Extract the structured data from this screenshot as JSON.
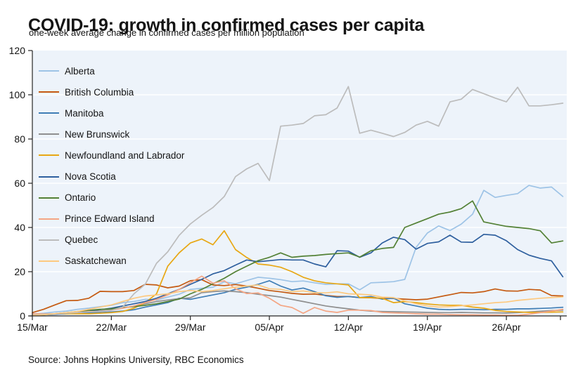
{
  "header": {
    "title": "COVID-19: growth in confirmed cases per capita",
    "subtitle": "one-week average change in confirmed cases per million population"
  },
  "source_note": "Source: Johns Hopkins University, RBC Economics",
  "chart_data": {
    "type": "line",
    "title": "COVID-19: growth in confirmed cases per capita",
    "subtitle": "one-week average change in confirmed cases per million population",
    "xlabel": "",
    "ylabel": "",
    "ylim": [
      0,
      120
    ],
    "y_ticks": [
      0,
      20,
      40,
      60,
      80,
      100,
      120
    ],
    "x_ticklabels": [
      "15/Mar",
      "22/Mar",
      "29/Mar",
      "05/Apr",
      "12/Apr",
      "19/Apr",
      "26/Apr"
    ],
    "x_tick_interval_days": 7,
    "grid": true,
    "legend_position": "top-left",
    "plot_background": "#edf3fa",
    "gridline_color": "#ffffff",
    "axis_color": "#262626",
    "text_color": "#141414",
    "dates": [
      "15/Mar",
      "16/Mar",
      "17/Mar",
      "18/Mar",
      "19/Mar",
      "20/Mar",
      "21/Mar",
      "22/Mar",
      "23/Mar",
      "24/Mar",
      "25/Mar",
      "26/Mar",
      "27/Mar",
      "28/Mar",
      "29/Mar",
      "30/Mar",
      "31/Mar",
      "01/Apr",
      "02/Apr",
      "03/Apr",
      "04/Apr",
      "05/Apr",
      "06/Apr",
      "07/Apr",
      "08/Apr",
      "09/Apr",
      "10/Apr",
      "11/Apr",
      "12/Apr",
      "13/Apr",
      "14/Apr",
      "15/Apr",
      "16/Apr",
      "17/Apr",
      "18/Apr",
      "19/Apr",
      "20/Apr",
      "21/Apr",
      "22/Apr",
      "23/Apr",
      "24/Apr",
      "25/Apr",
      "26/Apr",
      "27/Apr",
      "28/Apr",
      "29/Apr",
      "30/Apr",
      "01/May"
    ],
    "series": [
      {
        "name": "Alberta",
        "color": "#9dc3e6",
        "values": [
          0.8,
          1.2,
          1.8,
          2.2,
          3,
          3.5,
          4.2,
          4.8,
          6,
          6.5,
          7.5,
          7.2,
          8.5,
          9.8,
          12,
          12.5,
          13,
          15.4,
          14.5,
          16,
          17.5,
          17,
          16.4,
          15.5,
          15.8,
          15,
          14.3,
          14.5,
          14.5,
          11.8,
          15,
          15.2,
          15.5,
          16.5,
          31,
          37.5,
          40.7,
          38.6,
          41.5,
          46,
          56.8,
          53.6,
          54.5,
          55.3,
          59,
          57.8,
          58.3,
          54
        ]
      },
      {
        "name": "British Columbia",
        "color": "#c55a11",
        "values": [
          1.5,
          3,
          5,
          6.9,
          7,
          8,
          11.1,
          11,
          11,
          11.5,
          14.3,
          14,
          12.7,
          13.5,
          15.9,
          16.4,
          14,
          13.7,
          14.2,
          13.5,
          12.5,
          11.5,
          10.9,
          10.2,
          9.8,
          9.9,
          9.3,
          8.8,
          8.8,
          8.3,
          8.2,
          7.9,
          7.9,
          7.6,
          7.3,
          7.6,
          8.6,
          9.6,
          10.6,
          10.4,
          11,
          12.2,
          11.3,
          11.2,
          12,
          11.7,
          9.2,
          9
        ]
      },
      {
        "name": "Manitoba",
        "color": "#3f7db5",
        "values": [
          0.3,
          0.5,
          0.8,
          1,
          1.2,
          1.5,
          1.5,
          1.8,
          2.2,
          2.8,
          4,
          5,
          6,
          8,
          7.5,
          8.5,
          9.5,
          10.5,
          12,
          13,
          14.3,
          15.9,
          13.5,
          11.7,
          12.6,
          11,
          9.1,
          8.4,
          8.8,
          8.3,
          8.8,
          7.6,
          8,
          5.5,
          4.5,
          3.5,
          3,
          2.8,
          3,
          3,
          2.8,
          3,
          3,
          3.2,
          3.2,
          3.4,
          3.6,
          3.9
        ]
      },
      {
        "name": "New Brunswick",
        "color": "#8f8f8f",
        "values": [
          0.5,
          0.8,
          1,
          1.2,
          1.5,
          1.8,
          2.2,
          2.8,
          3.5,
          4.5,
          5.5,
          6.5,
          7.2,
          7.8,
          8.2,
          10.5,
          11,
          11.3,
          11,
          10.5,
          9.8,
          9.2,
          8.5,
          7.5,
          6.5,
          5.5,
          4.5,
          3.8,
          3.2,
          2.6,
          2.2,
          2,
          1.9,
          1.8,
          1.7,
          1.6,
          1.5,
          1.5,
          1.6,
          1.5,
          1.4,
          1.4,
          1.3,
          1.5,
          1.8,
          2.1,
          2.4,
          2.6
        ]
      },
      {
        "name": "Newfoundland and Labrador",
        "color": "#e8a713",
        "values": [
          1,
          1,
          1,
          1,
          1,
          1,
          1.2,
          1.5,
          2,
          3.5,
          6,
          10,
          22.5,
          28.5,
          33,
          34.8,
          32.2,
          38.5,
          30,
          26.4,
          23.5,
          23,
          22,
          20,
          17.5,
          15.9,
          15,
          14.5,
          14,
          8.3,
          8.3,
          8,
          6,
          6.5,
          6,
          5.4,
          5,
          4.8,
          4.8,
          4,
          3.5,
          2.5,
          2,
          1.8,
          1.6,
          1.6,
          1.7,
          1.8
        ]
      },
      {
        "name": "Nova Scotia",
        "color": "#2e5f9e",
        "values": [
          0.3,
          0.5,
          0.8,
          1.2,
          1.8,
          2.2,
          2.8,
          3.5,
          4.5,
          5.5,
          6.5,
          8,
          10,
          12,
          14.3,
          16.5,
          19,
          20.5,
          23,
          25.3,
          24.5,
          25,
          25.5,
          25.3,
          25.3,
          23.5,
          22.2,
          29.5,
          29.3,
          26.5,
          28.5,
          33,
          35.6,
          34.5,
          30.2,
          32.8,
          33.5,
          36.5,
          33.4,
          33.3,
          36.9,
          36.5,
          34,
          30,
          27.5,
          26,
          24.9,
          17.7
        ]
      },
      {
        "name": "Ontario",
        "color": "#538135",
        "values": [
          0.3,
          0.5,
          1,
          1.5,
          2,
          2.5,
          3,
          3.2,
          3.8,
          4.2,
          4.8,
          5.5,
          6.5,
          7.6,
          10,
          12,
          14.5,
          17,
          20,
          22.5,
          25,
          26.5,
          28.5,
          26.5,
          27,
          27.3,
          27.8,
          28.2,
          28.5,
          26.6,
          29.5,
          30.5,
          31,
          40,
          42,
          44,
          46,
          47,
          48.5,
          52,
          42.5,
          41.5,
          40.5,
          40,
          39.5,
          38.5,
          33,
          33.9
        ]
      },
      {
        "name": "Prince Edward Island",
        "color": "#f4a583",
        "values": [
          1,
          1,
          1,
          1.5,
          1.5,
          2,
          2,
          2.5,
          3.5,
          4.5,
          6,
          7.5,
          9.5,
          12,
          15,
          18,
          14.8,
          15.9,
          12.3,
          10.1,
          10.4,
          8,
          4.8,
          3.8,
          1.2,
          3.8,
          2.2,
          1.6,
          2.6,
          2.6,
          2.4,
          1.6,
          1.4,
          1.2,
          1,
          0.8,
          0.8,
          0.6,
          0.5,
          0.5,
          0.4,
          0.4,
          0.3,
          0.3,
          0.8,
          1.5,
          2.2,
          3
        ]
      },
      {
        "name": "Quebec",
        "color": "#bcbcbc",
        "values": [
          0.5,
          0.8,
          1,
          1.2,
          1.5,
          1.8,
          2,
          2.5,
          4,
          10,
          14.3,
          23.8,
          29,
          36.4,
          41.6,
          45.5,
          49,
          54,
          63,
          66.5,
          69,
          61.2,
          85.8,
          86.3,
          87,
          90.5,
          91,
          94,
          103.7,
          82.6,
          84,
          82.6,
          81.1,
          83,
          86.3,
          88,
          85.8,
          96.8,
          98,
          102.4,
          100.5,
          98.5,
          96.8,
          103.4,
          95,
          95,
          95.5,
          96.2
        ]
      },
      {
        "name": "Saskatchewan",
        "color": "#fdc97f",
        "values": [
          0.3,
          0.5,
          1,
          1.5,
          2,
          3,
          4,
          5,
          6.5,
          8,
          9,
          9.5,
          10,
          11,
          11.5,
          11,
          11.5,
          12.3,
          13,
          13.5,
          14,
          12.3,
          12,
          11,
          11.3,
          10.5,
          10.4,
          10.9,
          10,
          9.8,
          9.5,
          8.5,
          8.3,
          6.8,
          5.5,
          4.5,
          4,
          4.2,
          4.6,
          5,
          5.5,
          6,
          6.3,
          7,
          7.5,
          8,
          8.3,
          8.6
        ]
      }
    ]
  }
}
